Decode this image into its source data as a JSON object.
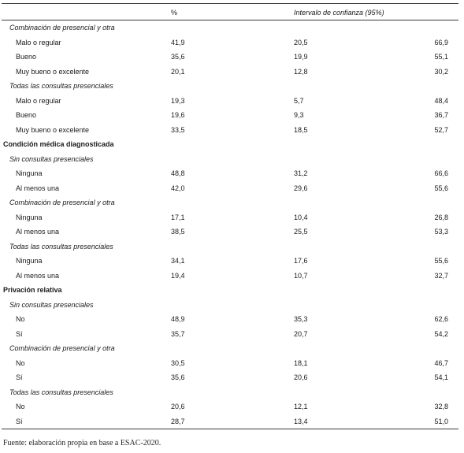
{
  "header": {
    "pct": "%",
    "ci": "Intervalo de confianza (95%)"
  },
  "rows": [
    {
      "type": "sub",
      "label": "Combinación de presencial y otra"
    },
    {
      "type": "item",
      "label": "Malo o regular",
      "pct": "41,9",
      "lo": "20,5",
      "hi": "66,9"
    },
    {
      "type": "item",
      "label": "Bueno",
      "pct": "35,6",
      "lo": "19,9",
      "hi": "55,1"
    },
    {
      "type": "item",
      "label": "Muy bueno o excelente",
      "pct": "20,1",
      "lo": "12,8",
      "hi": "30,2"
    },
    {
      "type": "sub",
      "label": "Todas las consultas presenciales"
    },
    {
      "type": "item",
      "label": "Malo o regular",
      "pct": "19,3",
      "lo": "5,7",
      "hi": "48,4"
    },
    {
      "type": "item",
      "label": "Bueno",
      "pct": "19,6",
      "lo": "9,3",
      "hi": "36,7"
    },
    {
      "type": "item",
      "label": "Muy bueno o excelente",
      "pct": "33,5",
      "lo": "18,5",
      "hi": "52,7"
    },
    {
      "type": "sec",
      "label": "Condición médica diagnosticada"
    },
    {
      "type": "sub",
      "label": "Sin consultas presenciales"
    },
    {
      "type": "item",
      "label": "Ninguna",
      "pct": "48,8",
      "lo": "31,2",
      "hi": "66,6"
    },
    {
      "type": "item",
      "label": "Al menos una",
      "pct": "42,0",
      "lo": "29,6",
      "hi": "55,6"
    },
    {
      "type": "sub",
      "label": "Combinación de presencial y otra"
    },
    {
      "type": "item",
      "label": "Ninguna",
      "pct": "17,1",
      "lo": "10,4",
      "hi": "26,8"
    },
    {
      "type": "item",
      "label": "Al menos una",
      "pct": "38,5",
      "lo": "25,5",
      "hi": "53,3"
    },
    {
      "type": "sub",
      "label": "Todas las consultas presenciales"
    },
    {
      "type": "item",
      "label": "Ninguna",
      "pct": "34,1",
      "lo": "17,6",
      "hi": "55,6"
    },
    {
      "type": "item",
      "label": "Al menos una",
      "pct": "19,4",
      "lo": "10,7",
      "hi": "32,7"
    },
    {
      "type": "sec",
      "label": "Privación relativa"
    },
    {
      "type": "sub",
      "label": "Sin consultas presenciales"
    },
    {
      "type": "item",
      "label": "No",
      "pct": "48,9",
      "lo": "35,3",
      "hi": "62,6"
    },
    {
      "type": "item",
      "label": "Sí",
      "pct": "35,7",
      "lo": "20,7",
      "hi": "54,2"
    },
    {
      "type": "sub",
      "label": "Combinación de presencial y otra"
    },
    {
      "type": "item",
      "label": "No",
      "pct": "30,5",
      "lo": "18,1",
      "hi": "46,7"
    },
    {
      "type": "item",
      "label": "Sí",
      "pct": "35,6",
      "lo": "20,6",
      "hi": "54,1"
    },
    {
      "type": "sub",
      "label": "Todas las consultas presenciales"
    },
    {
      "type": "item",
      "label": "No",
      "pct": "20,6",
      "lo": "12,1",
      "hi": "32,8"
    },
    {
      "type": "item",
      "label": "Sí",
      "pct": "28,7",
      "lo": "13,4",
      "hi": "51,0"
    }
  ],
  "footer": "Fuente: elaboración propia en base a ESAC-2020."
}
